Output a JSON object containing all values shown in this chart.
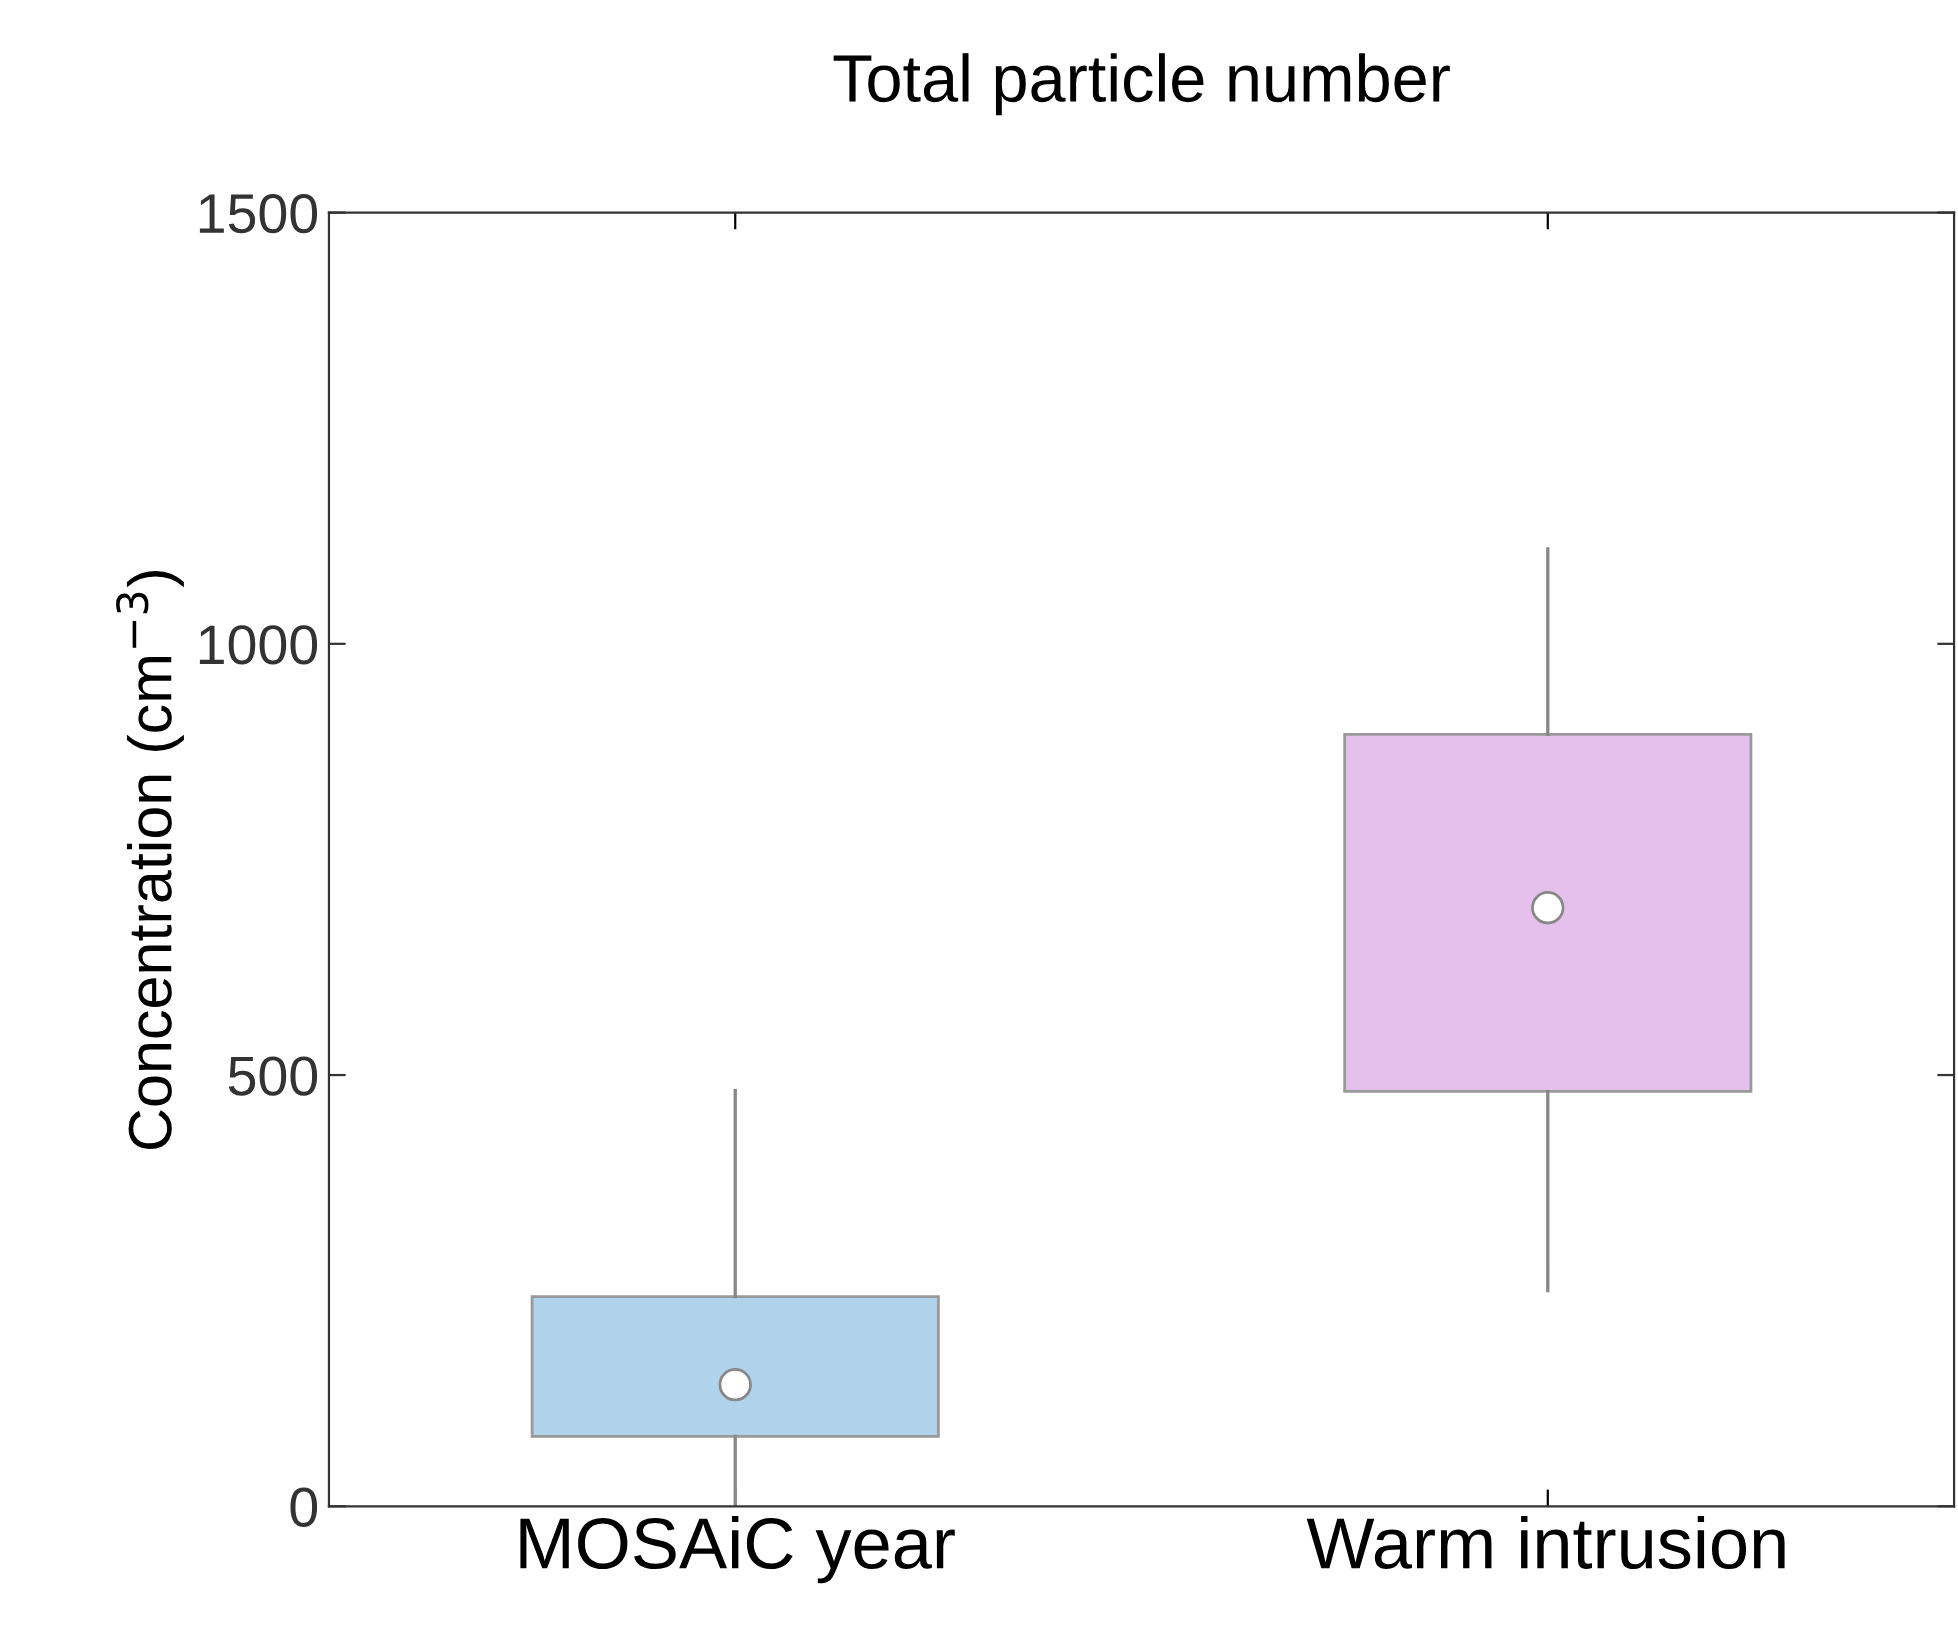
{
  "chart_data": {
    "type": "box",
    "title": "Total particle number",
    "ylabel": "Concentration (cm$^{−3}$)",
    "categories": [
      "MOSAiC year",
      "Warm intrusion"
    ],
    "colors": [
      "#afd3eb",
      "#e6c0ec"
    ],
    "boxes": [
      {
        "low": 0,
        "q1": 81,
        "median": 141,
        "q3": 243,
        "high": 482
      },
      {
        "low": 250,
        "q1": 481,
        "median": 694,
        "q3": 895,
        "high": 1110
      }
    ],
    "ylim": [
      0,
      1500
    ],
    "yticks": [
      0,
      500,
      1000,
      1500
    ],
    "grid": false
  }
}
